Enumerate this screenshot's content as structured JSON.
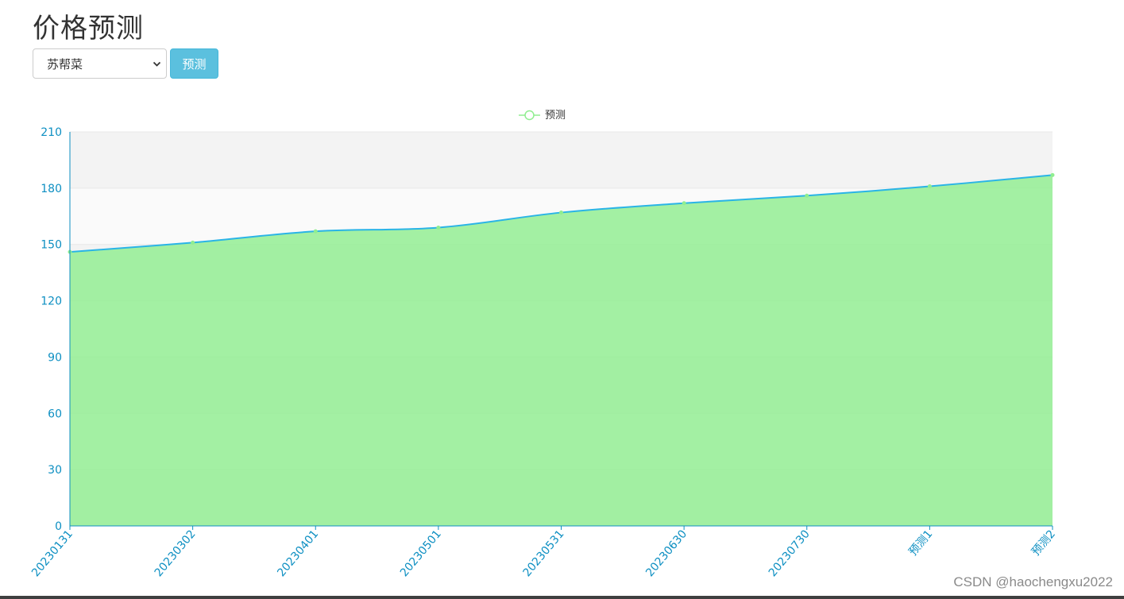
{
  "page": {
    "title": "价格预测",
    "select_value": "苏帮菜",
    "predict_button": "预测",
    "watermark": "CSDN @haochengxu2022"
  },
  "icons": {
    "dropdown": "chevron-down-icon",
    "legend_marker": "circle-line-icon"
  },
  "colors": {
    "line": "#2ab4e6",
    "area": "#90ee90",
    "axis": "#0d8fc2",
    "marker": "#90ee90",
    "legend": "#90ee90"
  },
  "chart_data": {
    "type": "area",
    "title": "",
    "xlabel": "",
    "ylabel": "",
    "legend": {
      "entries": [
        "预测"
      ],
      "placement": "top-center"
    },
    "categories": [
      "20230131",
      "20230302",
      "20230401",
      "20230501",
      "20230531",
      "20230630",
      "20230730",
      "预测1",
      "预测2"
    ],
    "series": [
      {
        "name": "预测",
        "values": [
          146,
          151,
          157,
          159,
          167,
          172,
          176,
          181,
          187
        ]
      }
    ],
    "ylim": [
      0,
      210
    ],
    "yticks": [
      0,
      30,
      60,
      90,
      120,
      150,
      180,
      210
    ],
    "smooth": true,
    "grid": "horizontal bands"
  }
}
